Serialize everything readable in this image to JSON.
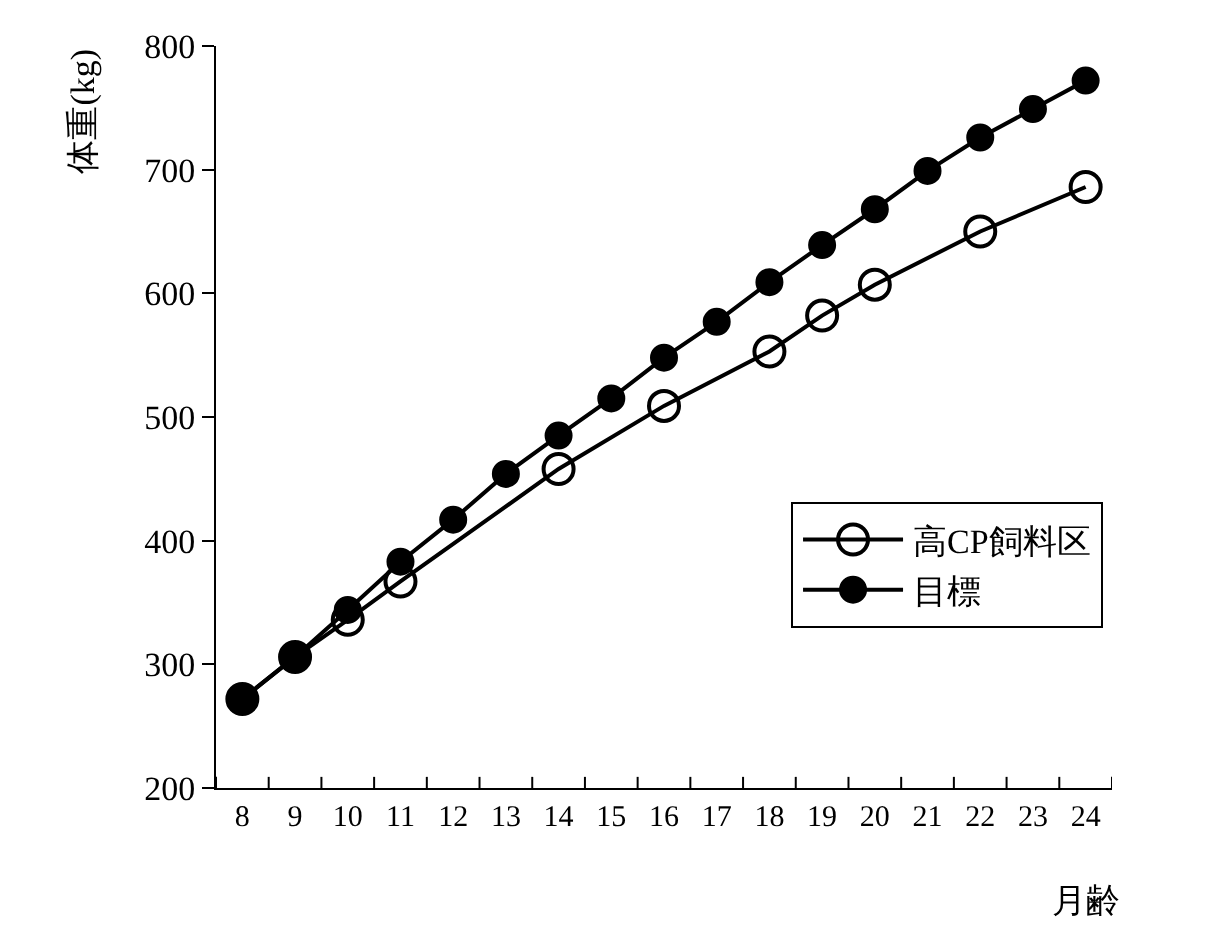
{
  "chart_data": {
    "type": "line",
    "xlabel": "月齢",
    "ylabel": "体重(kg)",
    "categories": [
      "8",
      "9",
      "10",
      "11",
      "12",
      "13",
      "14",
      "15",
      "16",
      "17",
      "18",
      "19",
      "20",
      "21",
      "22",
      "23",
      "24"
    ],
    "series": [
      {
        "name": "高CP飼料区",
        "color": "#000000",
        "values": [
          272,
          306,
          336,
          367,
          null,
          null,
          458,
          null,
          509,
          null,
          553,
          582,
          607,
          null,
          650,
          null,
          686
        ]
      },
      {
        "name": "目標",
        "color": "#000000",
        "values": [
          272,
          306,
          344,
          383,
          417,
          454,
          485,
          515,
          548,
          577,
          609,
          639,
          668,
          699,
          726,
          749,
          772
        ]
      }
    ],
    "ylim": [
      200,
      800
    ],
    "yticks": [
      200,
      300,
      400,
      500,
      600,
      700,
      800
    ],
    "grid": false,
    "marker": "circle",
    "legend": "bottom right",
    "line_style": "solid"
  }
}
